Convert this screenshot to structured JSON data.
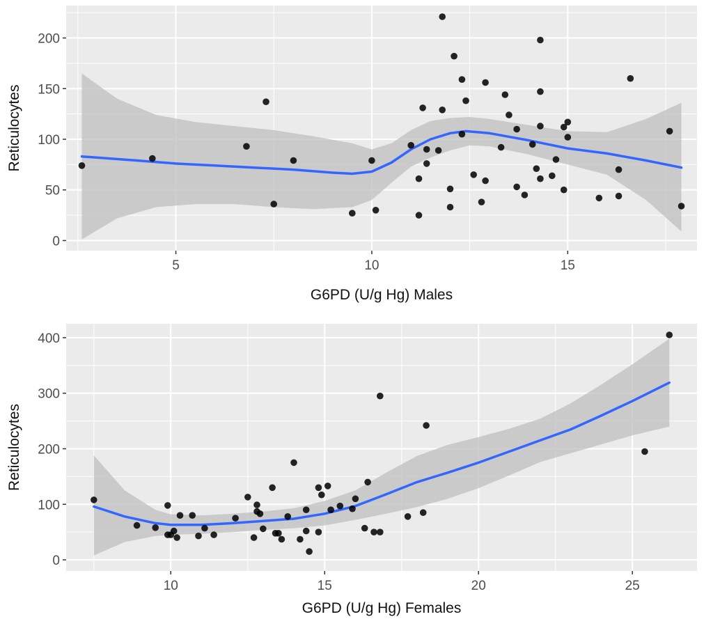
{
  "chart_data": [
    {
      "type": "scatter",
      "xlabel": "G6PD (U/g Hg) Males",
      "ylabel": "Reticulocytes",
      "xlim": [
        2.2,
        18.3
      ],
      "ylim": [
        -10,
        232
      ],
      "x_ticks": [
        5,
        10,
        15
      ],
      "y_ticks": [
        0,
        50,
        100,
        150,
        200
      ],
      "grid": true,
      "points": [
        [
          2.6,
          74
        ],
        [
          4.4,
          81
        ],
        [
          6.8,
          93
        ],
        [
          7.3,
          137
        ],
        [
          7.5,
          36
        ],
        [
          8,
          79
        ],
        [
          9.5,
          27
        ],
        [
          10,
          79
        ],
        [
          10.1,
          30
        ],
        [
          11,
          94
        ],
        [
          11.2,
          61
        ],
        [
          11.2,
          25
        ],
        [
          11.3,
          131
        ],
        [
          11.4,
          90
        ],
        [
          11.4,
          76
        ],
        [
          11.7,
          89
        ],
        [
          11.8,
          129
        ],
        [
          11.8,
          221
        ],
        [
          12,
          33
        ],
        [
          12,
          51
        ],
        [
          12.1,
          182
        ],
        [
          12.3,
          159
        ],
        [
          12.3,
          105
        ],
        [
          12.4,
          138
        ],
        [
          12.6,
          65
        ],
        [
          12.8,
          38
        ],
        [
          12.9,
          59
        ],
        [
          12.9,
          156
        ],
        [
          13.3,
          92
        ],
        [
          13.4,
          144
        ],
        [
          13.5,
          124
        ],
        [
          13.7,
          110
        ],
        [
          13.7,
          53
        ],
        [
          13.9,
          45
        ],
        [
          14.1,
          95
        ],
        [
          14.2,
          71
        ],
        [
          14.3,
          198
        ],
        [
          14.3,
          147
        ],
        [
          14.3,
          113
        ],
        [
          14.3,
          61
        ],
        [
          14.6,
          64
        ],
        [
          14.7,
          80
        ],
        [
          14.9,
          112
        ],
        [
          14.9,
          50
        ],
        [
          15,
          117
        ],
        [
          15,
          102
        ],
        [
          15.8,
          42
        ],
        [
          16.3,
          70
        ],
        [
          16.3,
          44
        ],
        [
          16.6,
          160
        ],
        [
          17.6,
          108
        ],
        [
          17.9,
          34
        ]
      ],
      "smooth": [
        [
          2.6,
          83
        ],
        [
          4,
          79
        ],
        [
          5,
          76
        ],
        [
          6,
          74
        ],
        [
          7,
          72
        ],
        [
          8,
          70
        ],
        [
          9,
          67
        ],
        [
          9.5,
          66
        ],
        [
          10,
          68
        ],
        [
          10.5,
          77
        ],
        [
          11,
          90
        ],
        [
          11.5,
          100
        ],
        [
          12,
          106
        ],
        [
          12.4,
          108
        ],
        [
          13,
          106
        ],
        [
          14,
          99
        ],
        [
          15,
          91
        ],
        [
          16,
          86
        ],
        [
          17,
          79
        ],
        [
          17.9,
          72
        ]
      ],
      "band_upper": [
        [
          2.6,
          165
        ],
        [
          3.5,
          140
        ],
        [
          4.5,
          124
        ],
        [
          5.5,
          117
        ],
        [
          6.5,
          113
        ],
        [
          7.5,
          109
        ],
        [
          8.5,
          103
        ],
        [
          9.5,
          96
        ],
        [
          10,
          90
        ],
        [
          10.5,
          96
        ],
        [
          11,
          109
        ],
        [
          11.5,
          118
        ],
        [
          12,
          121
        ],
        [
          12.5,
          122
        ],
        [
          13,
          120
        ],
        [
          14,
          114
        ],
        [
          15,
          108
        ],
        [
          16,
          107
        ],
        [
          17,
          120
        ],
        [
          17.9,
          136
        ]
      ],
      "band_lower": [
        [
          2.6,
          1
        ],
        [
          3.5,
          22
        ],
        [
          4.5,
          33
        ],
        [
          5.5,
          36
        ],
        [
          6.5,
          36
        ],
        [
          7.5,
          33
        ],
        [
          8.5,
          31
        ],
        [
          9.5,
          33
        ],
        [
          10,
          40
        ],
        [
          10.5,
          57
        ],
        [
          11,
          73
        ],
        [
          11.5,
          82
        ],
        [
          12,
          89
        ],
        [
          12.5,
          94
        ],
        [
          13,
          93
        ],
        [
          14,
          85
        ],
        [
          15,
          75
        ],
        [
          16,
          65
        ],
        [
          17,
          40
        ],
        [
          17.9,
          9
        ]
      ],
      "colors": {
        "points": "#000000",
        "smooth": "#3366ff",
        "band": "#bfbfbf",
        "panel": "#ebebeb",
        "grid": "#ffffff"
      }
    },
    {
      "type": "scatter",
      "xlabel": "G6PD (U/g Hg) Females",
      "ylabel": "Reticulocytes",
      "xlim": [
        6.6,
        27.1
      ],
      "ylim": [
        -20,
        425
      ],
      "x_ticks": [
        10,
        15,
        20,
        25
      ],
      "y_ticks": [
        0,
        100,
        200,
        300,
        400
      ],
      "grid": true,
      "points": [
        [
          7.5,
          108
        ],
        [
          8.9,
          62
        ],
        [
          9.5,
          58
        ],
        [
          9.9,
          45
        ],
        [
          9.9,
          98
        ],
        [
          10,
          45
        ],
        [
          10.1,
          52
        ],
        [
          10.2,
          40
        ],
        [
          10.3,
          80
        ],
        [
          10.7,
          80
        ],
        [
          10.9,
          43
        ],
        [
          11.1,
          57
        ],
        [
          11.4,
          45
        ],
        [
          12.1,
          75
        ],
        [
          12.5,
          113
        ],
        [
          12.7,
          40
        ],
        [
          12.8,
          99
        ],
        [
          12.8,
          87
        ],
        [
          12.9,
          83
        ],
        [
          13,
          56
        ],
        [
          13.3,
          130
        ],
        [
          13.4,
          48
        ],
        [
          13.5,
          48
        ],
        [
          13.6,
          37
        ],
        [
          13.8,
          78
        ],
        [
          14,
          175
        ],
        [
          14.2,
          37
        ],
        [
          14.4,
          90
        ],
        [
          14.4,
          52
        ],
        [
          14.5,
          15
        ],
        [
          14.8,
          130
        ],
        [
          14.8,
          50
        ],
        [
          14.9,
          117
        ],
        [
          15.1,
          133
        ],
        [
          15.2,
          90
        ],
        [
          15.5,
          97
        ],
        [
          15.9,
          92
        ],
        [
          16,
          110
        ],
        [
          16.3,
          57
        ],
        [
          16.4,
          140
        ],
        [
          16.6,
          50
        ],
        [
          16.8,
          50
        ],
        [
          16.8,
          295
        ],
        [
          17.7,
          78
        ],
        [
          18.2,
          85
        ],
        [
          18.3,
          242
        ],
        [
          25.4,
          195
        ],
        [
          26.2,
          405
        ]
      ],
      "smooth": [
        [
          7.5,
          96
        ],
        [
          8.5,
          78
        ],
        [
          9.5,
          66
        ],
        [
          10,
          63
        ],
        [
          11,
          63
        ],
        [
          12,
          66
        ],
        [
          13,
          70
        ],
        [
          14,
          74
        ],
        [
          15,
          83
        ],
        [
          16,
          97
        ],
        [
          17,
          118
        ],
        [
          18,
          140
        ],
        [
          19,
          157
        ],
        [
          20,
          175
        ],
        [
          21,
          195
        ],
        [
          22,
          215
        ],
        [
          23,
          235
        ],
        [
          24,
          260
        ],
        [
          25,
          286
        ],
        [
          26.2,
          319
        ]
      ],
      "band_upper": [
        [
          7.5,
          188
        ],
        [
          8.5,
          125
        ],
        [
          9.5,
          90
        ],
        [
          10,
          82
        ],
        [
          11,
          80
        ],
        [
          12,
          83
        ],
        [
          13,
          87
        ],
        [
          14,
          93
        ],
        [
          15,
          106
        ],
        [
          16,
          125
        ],
        [
          17,
          157
        ],
        [
          18,
          187
        ],
        [
          19,
          207
        ],
        [
          20,
          221
        ],
        [
          21,
          236
        ],
        [
          22,
          254
        ],
        [
          23,
          282
        ],
        [
          24,
          316
        ],
        [
          25,
          352
        ],
        [
          26.2,
          398
        ]
      ],
      "band_lower": [
        [
          7.5,
          8
        ],
        [
          8.5,
          32
        ],
        [
          9.5,
          43
        ],
        [
          10,
          45
        ],
        [
          11,
          47
        ],
        [
          12,
          50
        ],
        [
          13,
          54
        ],
        [
          14,
          57
        ],
        [
          15,
          62
        ],
        [
          16,
          72
        ],
        [
          17,
          83
        ],
        [
          18,
          95
        ],
        [
          19,
          110
        ],
        [
          20,
          129
        ],
        [
          21,
          152
        ],
        [
          22,
          176
        ],
        [
          23,
          192
        ],
        [
          24,
          208
        ],
        [
          25,
          224
        ],
        [
          26.2,
          240
        ]
      ],
      "colors": {
        "points": "#000000",
        "smooth": "#3366ff",
        "band": "#bfbfbf",
        "panel": "#ebebeb",
        "grid": "#ffffff"
      }
    }
  ]
}
